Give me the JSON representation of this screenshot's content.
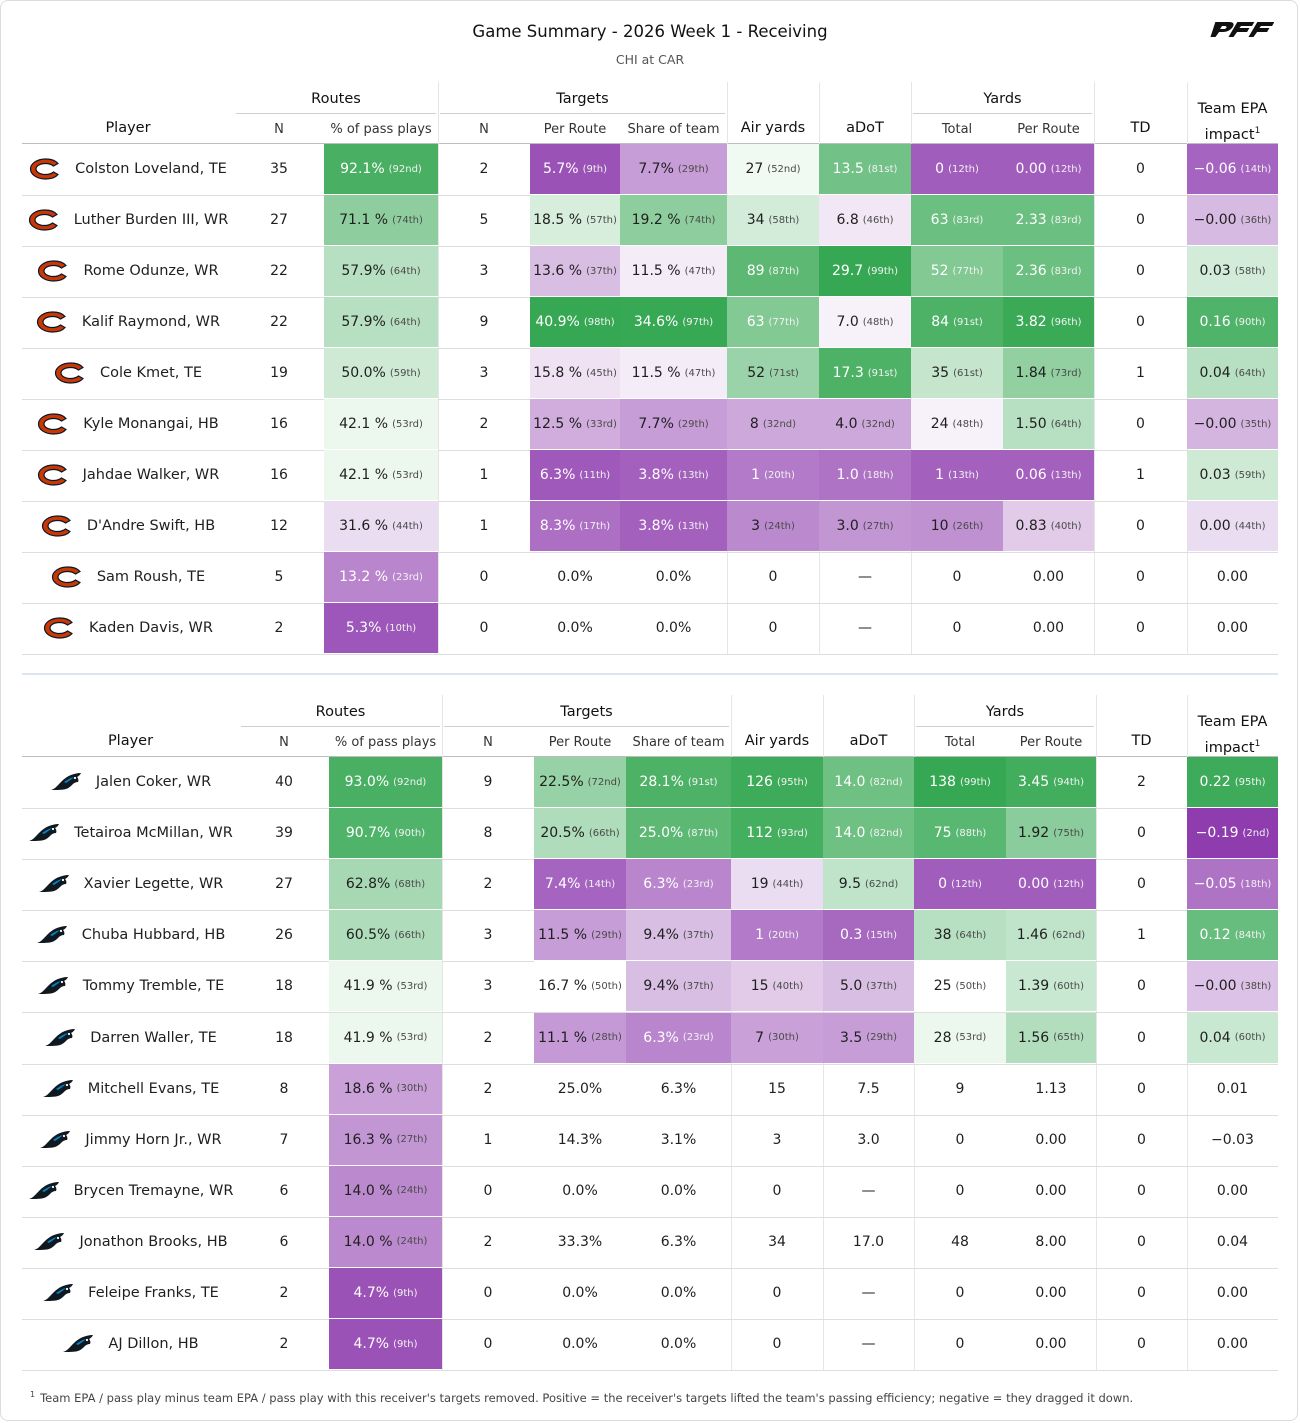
{
  "header": {
    "title": "Game Summary - 2026 Week 1 - Receiving",
    "subtitle": "CHI at CAR",
    "logo": "PFF"
  },
  "groups": {
    "routes": "Routes",
    "targets": "Targets",
    "yards": "Yards"
  },
  "columns": {
    "player": "Player",
    "n": "N",
    "pct_pass": "% of pass plays",
    "per_route": "Per Route",
    "share": "Share of team",
    "air_yards": "Air yards",
    "adot": "aDoT",
    "total": "Total",
    "td": "TD",
    "epa_line1": "Team EPA",
    "epa_line2": "impact",
    "epa_note": "1"
  },
  "colors": {
    "green_strong": "#36a853",
    "purple_strong": "#8e3cae",
    "neutral": "#ffffff",
    "chi_logo": "#c83803",
    "chi_navy": "#0b162a",
    "car_logo": "#101820",
    "car_blue": "#0085ca"
  },
  "footnote": {
    "mark": "1",
    "text": "Team EPA / pass play minus team EPA / pass play with this receiver's targets removed. Positive = the receiver's targets lifted the team's passing efficiency; negative = they dragged it down."
  },
  "chart_data": {
    "type": "table",
    "tables": [
      {
        "team": "CHI",
        "logo_icon": "bears-c-logo-icon",
        "rows": [
          {
            "player": "Colston Loveland, TE",
            "routes_n": "35",
            "routes_pct": [
              "92.1%",
              "92nd"
            ],
            "targets_n": "2",
            "per_route": [
              "5.7%",
              "9th"
            ],
            "share": [
              "7.7%",
              "29th"
            ],
            "air_yards": [
              "27",
              "52nd"
            ],
            "adot": [
              "13.5",
              "81st"
            ],
            "yds_total": [
              "0",
              "12th"
            ],
            "yds_per_route": [
              "0.00",
              "12th"
            ],
            "td": "0",
            "epa": [
              "−0.06",
              "14th"
            ]
          },
          {
            "player": "Luther Burden III, WR",
            "routes_n": "27",
            "routes_pct": [
              "71.1 %",
              "74th"
            ],
            "targets_n": "5",
            "per_route": [
              "18.5 %",
              "57th"
            ],
            "share": [
              "19.2 %",
              "74th"
            ],
            "air_yards": [
              "34",
              "58th"
            ],
            "adot": [
              "6.8",
              "46th"
            ],
            "yds_total": [
              "63",
              "83rd"
            ],
            "yds_per_route": [
              "2.33",
              "83rd"
            ],
            "td": "0",
            "epa": [
              "−0.00",
              "36th"
            ]
          },
          {
            "player": "Rome Odunze, WR",
            "routes_n": "22",
            "routes_pct": [
              "57.9%",
              "64th"
            ],
            "targets_n": "3",
            "per_route": [
              "13.6 %",
              "37th"
            ],
            "share": [
              "11.5 %",
              "47th"
            ],
            "air_yards": [
              "89",
              "87th"
            ],
            "adot": [
              "29.7",
              "99th"
            ],
            "yds_total": [
              "52",
              "77th"
            ],
            "yds_per_route": [
              "2.36",
              "83rd"
            ],
            "td": "0",
            "epa": [
              "0.03",
              "58th"
            ]
          },
          {
            "player": "Kalif Raymond, WR",
            "routes_n": "22",
            "routes_pct": [
              "57.9%",
              "64th"
            ],
            "targets_n": "9",
            "per_route": [
              "40.9%",
              "98th"
            ],
            "share": [
              "34.6%",
              "97th"
            ],
            "air_yards": [
              "63",
              "77th"
            ],
            "adot": [
              "7.0",
              "48th"
            ],
            "yds_total": [
              "84",
              "91st"
            ],
            "yds_per_route": [
              "3.82",
              "96th"
            ],
            "td": "0",
            "epa": [
              "0.16",
              "90th"
            ]
          },
          {
            "player": "Cole Kmet, TE",
            "routes_n": "19",
            "routes_pct": [
              "50.0%",
              "59th"
            ],
            "targets_n": "3",
            "per_route": [
              "15.8 %",
              "45th"
            ],
            "share": [
              "11.5 %",
              "47th"
            ],
            "air_yards": [
              "52",
              "71st"
            ],
            "adot": [
              "17.3",
              "91st"
            ],
            "yds_total": [
              "35",
              "61st"
            ],
            "yds_per_route": [
              "1.84",
              "73rd"
            ],
            "td": "1",
            "epa": [
              "0.04",
              "64th"
            ]
          },
          {
            "player": "Kyle Monangai, HB",
            "routes_n": "16",
            "routes_pct": [
              "42.1 %",
              "53rd"
            ],
            "targets_n": "2",
            "per_route": [
              "12.5 %",
              "33rd"
            ],
            "share": [
              "7.7%",
              "29th"
            ],
            "air_yards": [
              "8",
              "32nd"
            ],
            "adot": [
              "4.0",
              "32nd"
            ],
            "yds_total": [
              "24",
              "48th"
            ],
            "yds_per_route": [
              "1.50",
              "64th"
            ],
            "td": "0",
            "epa": [
              "−0.00",
              "35th"
            ]
          },
          {
            "player": "Jahdae Walker, WR",
            "routes_n": "16",
            "routes_pct": [
              "42.1 %",
              "53rd"
            ],
            "targets_n": "1",
            "per_route": [
              "6.3%",
              "11th"
            ],
            "share": [
              "3.8%",
              "13th"
            ],
            "air_yards": [
              "1",
              "20th"
            ],
            "adot": [
              "1.0",
              "18th"
            ],
            "yds_total": [
              "1",
              "13th"
            ],
            "yds_per_route": [
              "0.06",
              "13th"
            ],
            "td": "1",
            "epa": [
              "0.03",
              "59th"
            ]
          },
          {
            "player": "D'Andre Swift, HB",
            "routes_n": "12",
            "routes_pct": [
              "31.6 %",
              "44th"
            ],
            "targets_n": "1",
            "per_route": [
              "8.3%",
              "17th"
            ],
            "share": [
              "3.8%",
              "13th"
            ],
            "air_yards": [
              "3",
              "24th"
            ],
            "adot": [
              "3.0",
              "27th"
            ],
            "yds_total": [
              "10",
              "26th"
            ],
            "yds_per_route": [
              "0.83",
              "40th"
            ],
            "td": "0",
            "epa": [
              "0.00",
              "44th"
            ]
          },
          {
            "player": "Sam Roush, TE",
            "routes_n": "5",
            "routes_pct": [
              "13.2 %",
              "23rd"
            ],
            "targets_n": "0",
            "per_route": [
              "0.0%",
              ""
            ],
            "share": [
              "0.0%",
              ""
            ],
            "air_yards": [
              "0",
              ""
            ],
            "adot": [
              "—",
              ""
            ],
            "yds_total": [
              "0",
              ""
            ],
            "yds_per_route": [
              "0.00",
              ""
            ],
            "td": "0",
            "epa": [
              "0.00",
              ""
            ]
          },
          {
            "player": "Kaden Davis, WR",
            "routes_n": "2",
            "routes_pct": [
              "5.3%",
              "10th"
            ],
            "targets_n": "0",
            "per_route": [
              "0.0%",
              ""
            ],
            "share": [
              "0.0%",
              ""
            ],
            "air_yards": [
              "0",
              ""
            ],
            "adot": [
              "—",
              ""
            ],
            "yds_total": [
              "0",
              ""
            ],
            "yds_per_route": [
              "0.00",
              ""
            ],
            "td": "0",
            "epa": [
              "0.00",
              ""
            ]
          }
        ]
      },
      {
        "team": "CAR",
        "logo_icon": "panthers-logo-icon",
        "rows": [
          {
            "player": "Jalen Coker, WR",
            "routes_n": "40",
            "routes_pct": [
              "93.0%",
              "92nd"
            ],
            "targets_n": "9",
            "per_route": [
              "22.5%",
              "72nd"
            ],
            "share": [
              "28.1%",
              "91st"
            ],
            "air_yards": [
              "126",
              "95th"
            ],
            "adot": [
              "14.0",
              "82nd"
            ],
            "yds_total": [
              "138",
              "99th"
            ],
            "yds_per_route": [
              "3.45",
              "94th"
            ],
            "td": "2",
            "epa": [
              "0.22",
              "95th"
            ]
          },
          {
            "player": "Tetairoa McMillan, WR",
            "routes_n": "39",
            "routes_pct": [
              "90.7%",
              "90th"
            ],
            "targets_n": "8",
            "per_route": [
              "20.5%",
              "66th"
            ],
            "share": [
              "25.0%",
              "87th"
            ],
            "air_yards": [
              "112",
              "93rd"
            ],
            "adot": [
              "14.0",
              "82nd"
            ],
            "yds_total": [
              "75",
              "88th"
            ],
            "yds_per_route": [
              "1.92",
              "75th"
            ],
            "td": "0",
            "epa": [
              "−0.19",
              "2nd"
            ]
          },
          {
            "player": "Xavier Legette, WR",
            "routes_n": "27",
            "routes_pct": [
              "62.8%",
              "68th"
            ],
            "targets_n": "2",
            "per_route": [
              "7.4%",
              "14th"
            ],
            "share": [
              "6.3%",
              "23rd"
            ],
            "air_yards": [
              "19",
              "44th"
            ],
            "adot": [
              "9.5",
              "62nd"
            ],
            "yds_total": [
              "0",
              "12th"
            ],
            "yds_per_route": [
              "0.00",
              "12th"
            ],
            "td": "0",
            "epa": [
              "−0.05",
              "18th"
            ]
          },
          {
            "player": "Chuba Hubbard, HB",
            "routes_n": "26",
            "routes_pct": [
              "60.5%",
              "66th"
            ],
            "targets_n": "3",
            "per_route": [
              "11.5 %",
              "29th"
            ],
            "share": [
              "9.4%",
              "37th"
            ],
            "air_yards": [
              "1",
              "20th"
            ],
            "adot": [
              "0.3",
              "15th"
            ],
            "yds_total": [
              "38",
              "64th"
            ],
            "yds_per_route": [
              "1.46",
              "62nd"
            ],
            "td": "1",
            "epa": [
              "0.12",
              "84th"
            ]
          },
          {
            "player": "Tommy Tremble, TE",
            "routes_n": "18",
            "routes_pct": [
              "41.9 %",
              "53rd"
            ],
            "targets_n": "3",
            "per_route": [
              "16.7 %",
              "50th"
            ],
            "share": [
              "9.4%",
              "37th"
            ],
            "air_yards": [
              "15",
              "40th"
            ],
            "adot": [
              "5.0",
              "37th"
            ],
            "yds_total": [
              "25",
              "50th"
            ],
            "yds_per_route": [
              "1.39",
              "60th"
            ],
            "td": "0",
            "epa": [
              "−0.00",
              "38th"
            ]
          },
          {
            "player": "Darren Waller, TE",
            "routes_n": "18",
            "routes_pct": [
              "41.9 %",
              "53rd"
            ],
            "targets_n": "2",
            "per_route": [
              "11.1 %",
              "28th"
            ],
            "share": [
              "6.3%",
              "23rd"
            ],
            "air_yards": [
              "7",
              "30th"
            ],
            "adot": [
              "3.5",
              "29th"
            ],
            "yds_total": [
              "28",
              "53rd"
            ],
            "yds_per_route": [
              "1.56",
              "65th"
            ],
            "td": "0",
            "epa": [
              "0.04",
              "60th"
            ]
          },
          {
            "player": "Mitchell Evans, TE",
            "routes_n": "8",
            "routes_pct": [
              "18.6 %",
              "30th"
            ],
            "targets_n": "2",
            "per_route": [
              "25.0%",
              ""
            ],
            "share": [
              "6.3%",
              ""
            ],
            "air_yards": [
              "15",
              ""
            ],
            "adot": [
              "7.5",
              ""
            ],
            "yds_total": [
              "9",
              ""
            ],
            "yds_per_route": [
              "1.13",
              ""
            ],
            "td": "0",
            "epa": [
              "0.01",
              ""
            ]
          },
          {
            "player": "Jimmy Horn Jr., WR",
            "routes_n": "7",
            "routes_pct": [
              "16.3 %",
              "27th"
            ],
            "targets_n": "1",
            "per_route": [
              "14.3%",
              ""
            ],
            "share": [
              "3.1%",
              ""
            ],
            "air_yards": [
              "3",
              ""
            ],
            "adot": [
              "3.0",
              ""
            ],
            "yds_total": [
              "0",
              ""
            ],
            "yds_per_route": [
              "0.00",
              ""
            ],
            "td": "0",
            "epa": [
              "−0.03",
              ""
            ]
          },
          {
            "player": "Brycen Tremayne, WR",
            "routes_n": "6",
            "routes_pct": [
              "14.0 %",
              "24th"
            ],
            "targets_n": "0",
            "per_route": [
              "0.0%",
              ""
            ],
            "share": [
              "0.0%",
              ""
            ],
            "air_yards": [
              "0",
              ""
            ],
            "adot": [
              "—",
              ""
            ],
            "yds_total": [
              "0",
              ""
            ],
            "yds_per_route": [
              "0.00",
              ""
            ],
            "td": "0",
            "epa": [
              "0.00",
              ""
            ]
          },
          {
            "player": "Jonathon Brooks, HB",
            "routes_n": "6",
            "routes_pct": [
              "14.0 %",
              "24th"
            ],
            "targets_n": "2",
            "per_route": [
              "33.3%",
              ""
            ],
            "share": [
              "6.3%",
              ""
            ],
            "air_yards": [
              "34",
              ""
            ],
            "adot": [
              "17.0",
              ""
            ],
            "yds_total": [
              "48",
              ""
            ],
            "yds_per_route": [
              "8.00",
              ""
            ],
            "td": "0",
            "epa": [
              "0.04",
              ""
            ]
          },
          {
            "player": "Feleipe Franks, TE",
            "routes_n": "2",
            "routes_pct": [
              "4.7%",
              "9th"
            ],
            "targets_n": "0",
            "per_route": [
              "0.0%",
              ""
            ],
            "share": [
              "0.0%",
              ""
            ],
            "air_yards": [
              "0",
              ""
            ],
            "adot": [
              "—",
              ""
            ],
            "yds_total": [
              "0",
              ""
            ],
            "yds_per_route": [
              "0.00",
              ""
            ],
            "td": "0",
            "epa": [
              "0.00",
              ""
            ]
          },
          {
            "player": "AJ Dillon, HB",
            "routes_n": "2",
            "routes_pct": [
              "4.7%",
              "9th"
            ],
            "targets_n": "0",
            "per_route": [
              "0.0%",
              ""
            ],
            "share": [
              "0.0%",
              ""
            ],
            "air_yards": [
              "0",
              ""
            ],
            "adot": [
              "—",
              ""
            ],
            "yds_total": [
              "0",
              ""
            ],
            "yds_per_route": [
              "0.00",
              ""
            ],
            "td": "0",
            "epa": [
              "0.00",
              ""
            ]
          }
        ]
      }
    ]
  }
}
